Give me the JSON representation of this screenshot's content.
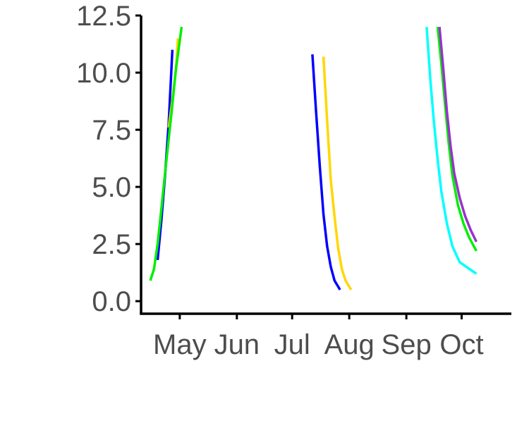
{
  "chart_data": {
    "type": "line",
    "title": "",
    "xlabel": "",
    "ylabel": "",
    "x_scale": "date",
    "xlim": [
      "2024-04-10",
      "2024-10-28"
    ],
    "ylim": [
      -0.55,
      12.5
    ],
    "grid": false,
    "legend": "none",
    "x_ticks": [
      {
        "label": "May",
        "date": "2024-05-01"
      },
      {
        "label": "Jun",
        "date": "2024-06-01"
      },
      {
        "label": "Jul",
        "date": "2024-07-01"
      },
      {
        "label": "Aug",
        "date": "2024-08-01"
      },
      {
        "label": "Sep",
        "date": "2024-09-01"
      },
      {
        "label": "Oct",
        "date": "2024-10-01"
      }
    ],
    "y_ticks": [
      {
        "label": "0.0",
        "value": 0
      },
      {
        "label": "2.5",
        "value": 2.5
      },
      {
        "label": "5.0",
        "value": 5
      },
      {
        "label": "7.5",
        "value": 7.5
      },
      {
        "label": "10.0",
        "value": 10
      },
      {
        "label": "12.5",
        "value": 12.5
      }
    ],
    "series": [
      {
        "color": "#0000ff",
        "points": [
          {
            "x": "2024-04-19",
            "y": 1.8
          },
          {
            "x": "2024-04-21",
            "y": 3.5
          },
          {
            "x": "2024-04-23",
            "y": 5.5
          },
          {
            "x": "2024-04-25",
            "y": 7.8
          },
          {
            "x": "2024-04-27",
            "y": 11.0
          }
        ]
      },
      {
        "color": "#ffd700",
        "points": [
          {
            "x": "2024-04-25",
            "y": 7.6
          },
          {
            "x": "2024-04-27",
            "y": 8.8
          },
          {
            "x": "2024-04-29",
            "y": 10.2
          },
          {
            "x": "2024-04-30",
            "y": 11.5
          }
        ]
      },
      {
        "color": "#00ee00",
        "points": [
          {
            "x": "2024-04-15",
            "y": 0.9
          },
          {
            "x": "2024-04-17",
            "y": 1.4
          },
          {
            "x": "2024-04-19",
            "y": 2.5
          },
          {
            "x": "2024-04-21",
            "y": 4.0
          },
          {
            "x": "2024-04-23",
            "y": 5.6
          },
          {
            "x": "2024-04-25",
            "y": 7.1
          },
          {
            "x": "2024-04-27",
            "y": 8.6
          },
          {
            "x": "2024-04-29",
            "y": 10.2
          },
          {
            "x": "2024-05-02",
            "y": 12.0
          }
        ]
      },
      {
        "color": "#0000ff",
        "points": [
          {
            "x": "2024-07-12",
            "y": 10.8
          },
          {
            "x": "2024-07-14",
            "y": 8.3
          },
          {
            "x": "2024-07-16",
            "y": 5.9
          },
          {
            "x": "2024-07-18",
            "y": 3.8
          },
          {
            "x": "2024-07-20",
            "y": 2.4
          },
          {
            "x": "2024-07-22",
            "y": 1.5
          },
          {
            "x": "2024-07-24",
            "y": 0.9
          },
          {
            "x": "2024-07-27",
            "y": 0.5
          }
        ]
      },
      {
        "color": "#ffd700",
        "points": [
          {
            "x": "2024-07-18",
            "y": 10.7
          },
          {
            "x": "2024-07-20",
            "y": 7.9
          },
          {
            "x": "2024-07-22",
            "y": 5.3
          },
          {
            "x": "2024-07-24",
            "y": 3.7
          },
          {
            "x": "2024-07-26",
            "y": 2.3
          },
          {
            "x": "2024-07-28",
            "y": 1.4
          },
          {
            "x": "2024-07-30",
            "y": 0.9
          },
          {
            "x": "2024-08-02",
            "y": 0.5
          }
        ]
      },
      {
        "color": "#00ffff",
        "points": [
          {
            "x": "2024-09-12",
            "y": 12.0
          },
          {
            "x": "2024-09-14",
            "y": 9.7
          },
          {
            "x": "2024-09-16",
            "y": 7.8
          },
          {
            "x": "2024-09-18",
            "y": 6.2
          },
          {
            "x": "2024-09-20",
            "y": 4.8
          },
          {
            "x": "2024-09-23",
            "y": 3.4
          },
          {
            "x": "2024-09-26",
            "y": 2.4
          },
          {
            "x": "2024-09-30",
            "y": 1.7
          },
          {
            "x": "2024-10-09",
            "y": 1.2
          }
        ]
      },
      {
        "color": "#00ee00",
        "points": [
          {
            "x": "2024-09-18",
            "y": 12.0
          },
          {
            "x": "2024-09-20",
            "y": 10.4
          },
          {
            "x": "2024-09-22",
            "y": 8.6
          },
          {
            "x": "2024-09-24",
            "y": 6.9
          },
          {
            "x": "2024-09-26",
            "y": 5.5
          },
          {
            "x": "2024-09-29",
            "y": 4.2
          },
          {
            "x": "2024-10-02",
            "y": 3.4
          },
          {
            "x": "2024-10-05",
            "y": 2.8
          },
          {
            "x": "2024-10-09",
            "y": 2.2
          }
        ]
      },
      {
        "color": "#9932cc",
        "points": [
          {
            "x": "2024-09-19",
            "y": 12.0
          },
          {
            "x": "2024-09-21",
            "y": 10.2
          },
          {
            "x": "2024-09-23",
            "y": 8.3
          },
          {
            "x": "2024-09-25",
            "y": 6.8
          },
          {
            "x": "2024-09-27",
            "y": 5.6
          },
          {
            "x": "2024-09-30",
            "y": 4.5
          },
          {
            "x": "2024-10-03",
            "y": 3.7
          },
          {
            "x": "2024-10-06",
            "y": 3.1
          },
          {
            "x": "2024-10-09",
            "y": 2.6
          }
        ]
      }
    ]
  }
}
